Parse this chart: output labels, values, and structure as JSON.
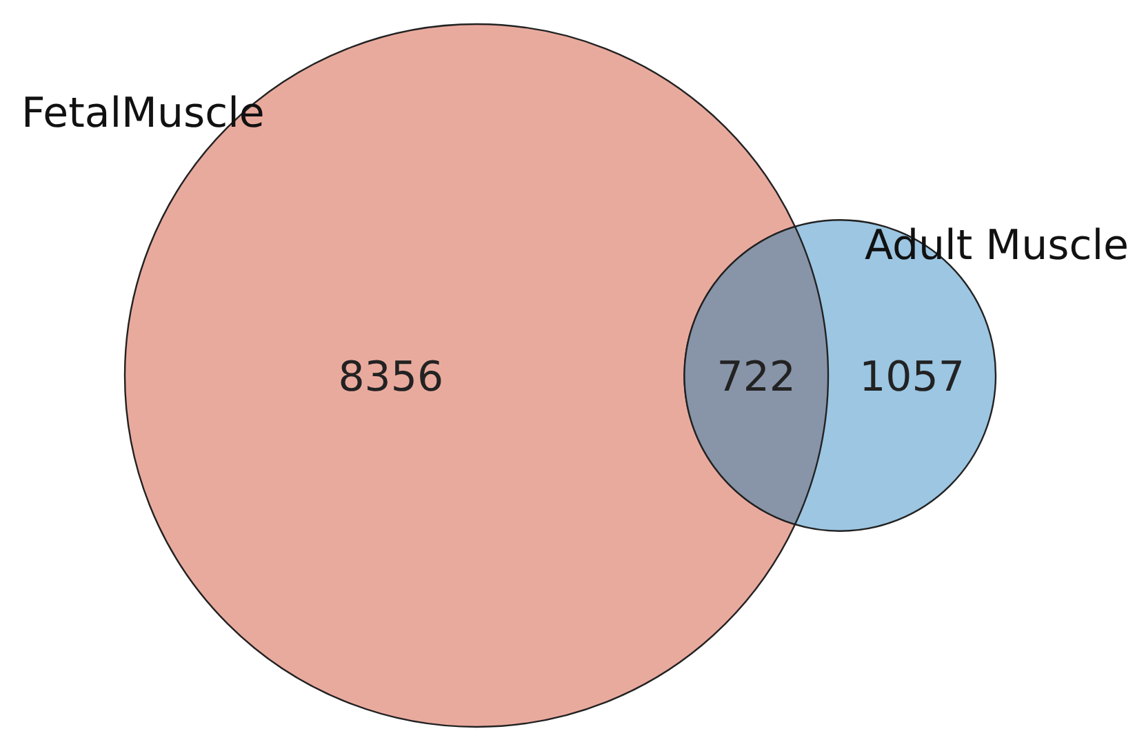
{
  "chart_data": {
    "type": "other",
    "categories": [
      "FetalMuscle",
      null,
      "Adult Muscle"
    ],
    "values": [
      8356,
      722,
      1057
    ],
    "colors": [
      "#e9aa9e",
      "#8894a8",
      "#9cc6e2"
    ],
    "data_labels": true
  }
}
